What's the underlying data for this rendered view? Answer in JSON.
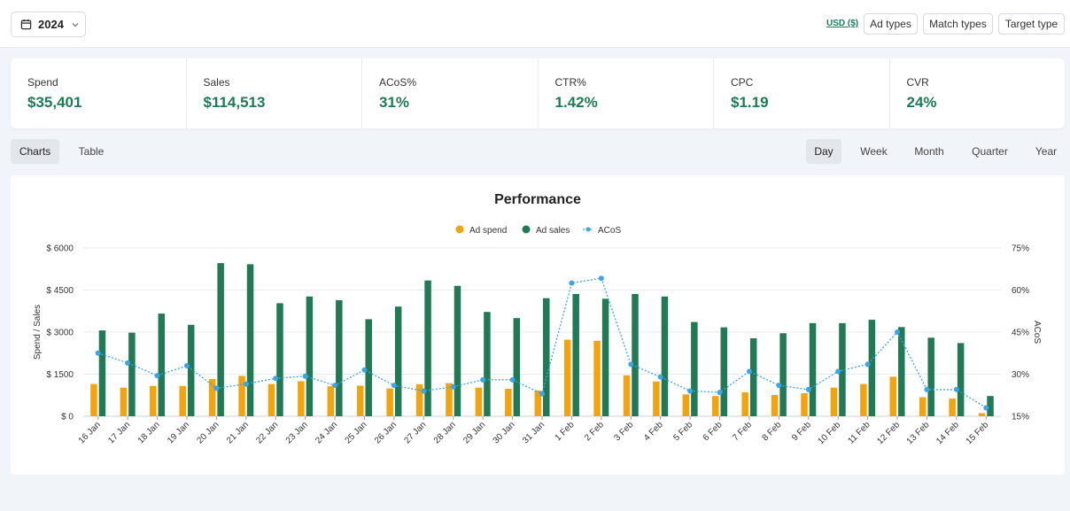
{
  "toolbar": {
    "year": "2024",
    "currency": "USD ($)",
    "buttons": [
      "Ad types",
      "Match types",
      "Target type"
    ]
  },
  "metrics": [
    {
      "label": "Spend",
      "value": "$35,401"
    },
    {
      "label": "Sales",
      "value": "$114,513"
    },
    {
      "label": "ACoS%",
      "value": "31%"
    },
    {
      "label": "CTR%",
      "value": "1.42%"
    },
    {
      "label": "CPC",
      "value": "$1.19"
    },
    {
      "label": "CVR",
      "value": "24%"
    }
  ],
  "view_tabs": {
    "charts": "Charts",
    "table": "Table"
  },
  "period_tabs": [
    "Day",
    "Week",
    "Month",
    "Quarter",
    "Year"
  ],
  "colors": {
    "spend": "#f5a30a",
    "sales": "#1f7a55",
    "acos": "#3aa6e8",
    "accent": "#1e7a57"
  },
  "chart_data": {
    "type": "bar",
    "title": "Performance",
    "legend": [
      "Ad spend",
      "Ad sales",
      "ACoS"
    ],
    "legend_position": "top-center",
    "ylabel": "Spend / Sales",
    "y2label": "ACoS",
    "ylim": [
      0,
      6000
    ],
    "y2lim": [
      15,
      75
    ],
    "yticks": [
      "$ 0",
      "$ 1500",
      "$ 3000",
      "$ 4500",
      "$ 6000"
    ],
    "y2ticks": [
      "15%",
      "30%",
      "45%",
      "60%",
      "75%"
    ],
    "grid": true,
    "categories": [
      "16 Jan",
      "17 Jan",
      "18 Jan",
      "19 Jan",
      "20 Jan",
      "21 Jan",
      "22 Jan",
      "23 Jan",
      "24 Jan",
      "25 Jan",
      "26 Jan",
      "27 Jan",
      "28 Jan",
      "29 Jan",
      "30 Jan",
      "31 Jan",
      "1 Feb",
      "2 Feb",
      "3 Feb",
      "4 Feb",
      "5 Feb",
      "6 Feb",
      "7 Feb",
      "8 Feb",
      "9 Feb",
      "10 Feb",
      "11 Feb",
      "12 Feb",
      "13 Feb",
      "14 Feb",
      "15 Feb"
    ],
    "series": [
      {
        "name": "Ad spend",
        "type": "bar",
        "axis": "left",
        "values": [
          1150,
          1020,
          1080,
          1080,
          1330,
          1440,
          1150,
          1250,
          1070,
          1090,
          990,
          1140,
          1180,
          1020,
          980,
          920,
          2730,
          2690,
          1460,
          1240,
          780,
          720,
          850,
          760,
          820,
          1020,
          1150,
          1410,
          680,
          630,
          110
        ]
      },
      {
        "name": "Ad sales",
        "type": "bar",
        "axis": "left",
        "values": [
          3060,
          2980,
          3660,
          3260,
          5460,
          5420,
          4030,
          4270,
          4140,
          3460,
          3910,
          4840,
          4650,
          3720,
          3500,
          4210,
          4360,
          4190,
          4360,
          4270,
          3360,
          3170,
          2780,
          2960,
          3320,
          3320,
          3440,
          3180,
          2800,
          2610,
          720
        ]
      },
      {
        "name": "ACoS",
        "type": "line",
        "axis": "right",
        "values": [
          37.5,
          34,
          29.5,
          33,
          25,
          26.5,
          28.5,
          29.3,
          26,
          31.5,
          26,
          24,
          25.5,
          28,
          28,
          23,
          62.5,
          64.2,
          33.5,
          29,
          24,
          23.5,
          31,
          26,
          24.5,
          31,
          33.5,
          45,
          24.5,
          24.5,
          18
        ]
      }
    ]
  }
}
